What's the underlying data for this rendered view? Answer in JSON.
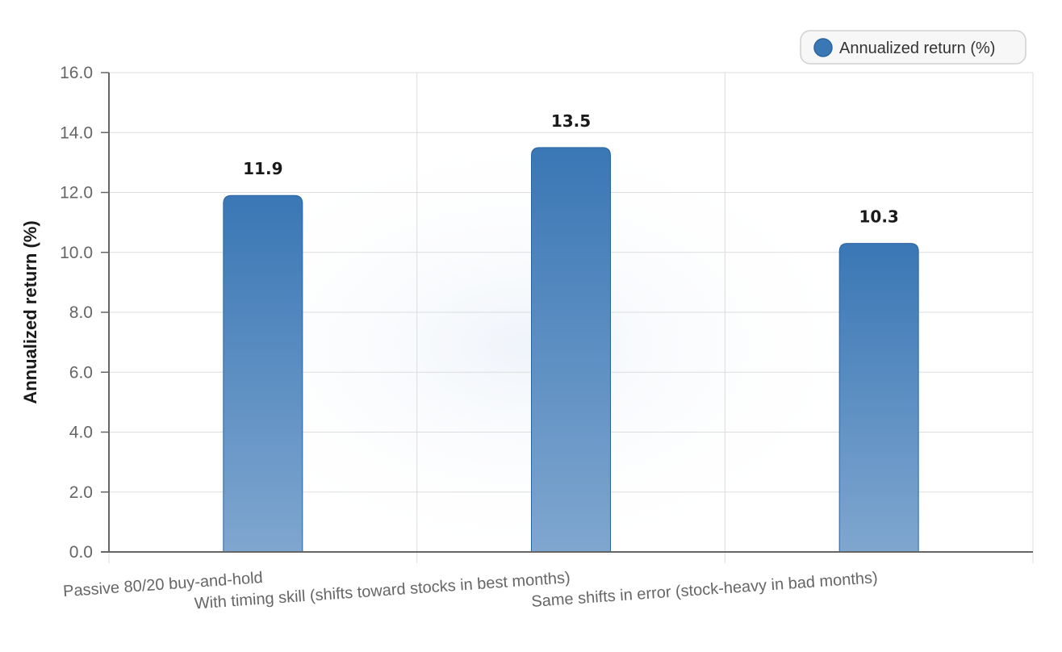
{
  "chart_data": {
    "type": "bar",
    "title": "",
    "xlabel": "",
    "ylabel": "Annualized return (%)",
    "categories": [
      "Passive 80/20 buy-and-hold",
      "With timing skill (shifts toward stocks in best months)",
      "Same shifts in error (stock-heavy in bad months)"
    ],
    "series": [
      {
        "name": "Annualized return (%)",
        "values": [
          11.9,
          13.5,
          10.3
        ]
      }
    ],
    "data_labels": [
      "11.9",
      "13.5",
      "10.3"
    ],
    "y_ticks": [
      "0.0",
      "2.0",
      "4.0",
      "6.0",
      "8.0",
      "10.0",
      "12.0",
      "14.0",
      "16.0"
    ],
    "ylim": [
      0,
      16
    ],
    "grid": true,
    "legend_position": "top-right",
    "bar_color": "#3a77b5"
  }
}
